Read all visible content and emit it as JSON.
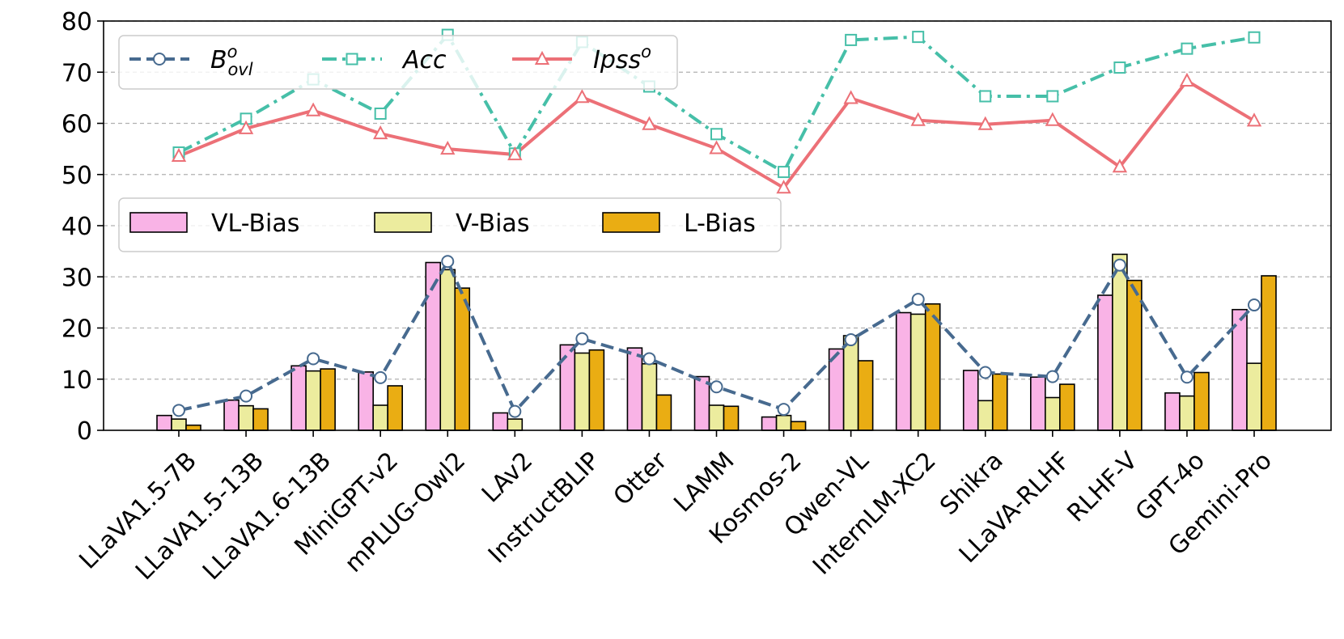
{
  "chart_data": {
    "type": "bar",
    "categories": [
      "LLaVA1.5-7B",
      "LLaVA1.5-13B",
      "LLaVA1.6-13B",
      "MiniGPT-v2",
      "mPLUG-Owl2",
      "LAv2",
      "InstructBLIP",
      "Otter",
      "LAMM",
      "Kosmos-2",
      "Qwen-VL",
      "InternLM-XC2",
      "Shikra",
      "LLaVA-RLHF",
      "RLHF-V",
      "GPT-4o",
      "Gemini-Pro"
    ],
    "ylim": [
      0,
      80
    ],
    "yticks": [
      0,
      10,
      20,
      30,
      40,
      50,
      60,
      70,
      80
    ],
    "grid": "horizontal dashed",
    "bar_series": [
      {
        "name": "VL-Bias",
        "color": "#f9b3e6",
        "values": [
          2.9,
          5.9,
          12.6,
          11.4,
          32.8,
          3.4,
          16.7,
          16.1,
          10.5,
          2.6,
          15.9,
          23.0,
          11.7,
          10.4,
          26.4,
          7.3,
          23.6
        ]
      },
      {
        "name": "V-Bias",
        "color": "#ecec9e",
        "values": [
          2.2,
          4.8,
          11.6,
          4.9,
          31.4,
          2.2,
          15.1,
          13.0,
          4.9,
          2.9,
          18.5,
          22.7,
          5.8,
          6.4,
          34.4,
          6.7,
          13.1
        ]
      },
      {
        "name": "L-Bias",
        "color": "#eaad13",
        "values": [
          1.0,
          4.2,
          12.0,
          8.7,
          27.8,
          0.0,
          15.7,
          6.9,
          4.7,
          1.7,
          13.6,
          24.7,
          11.0,
          9.0,
          29.3,
          11.3,
          30.2
        ]
      }
    ],
    "line_series": [
      {
        "name_base": "B",
        "name_sup": "o",
        "name_sub": "ovl",
        "color": "#476a8f",
        "marker": "circle",
        "dash": "dashed",
        "values": [
          3.9,
          6.7,
          14.0,
          10.3,
          33.0,
          3.7,
          17.9,
          14.0,
          8.5,
          4.1,
          17.7,
          25.6,
          11.3,
          10.5,
          32.3,
          10.4,
          24.5
        ]
      },
      {
        "name_base": "Acc",
        "name_sup": "",
        "name_sub": "",
        "color": "#46bfa8",
        "marker": "square",
        "dash": "dashdot",
        "values": [
          54.3,
          60.9,
          68.6,
          61.9,
          77.3,
          54.1,
          75.9,
          67.2,
          57.9,
          50.5,
          76.3,
          76.9,
          65.3,
          65.3,
          70.9,
          74.6,
          76.8
        ]
      },
      {
        "name_base": "Ipss",
        "name_sup": "o",
        "name_sub": "",
        "color": "#ec7077",
        "marker": "triangle",
        "dash": "solid",
        "values": [
          53.6,
          59.0,
          62.5,
          58.0,
          55.0,
          53.9,
          65.1,
          59.8,
          55.1,
          47.4,
          64.9,
          60.6,
          59.8,
          60.6,
          51.5,
          68.3,
          60.5
        ]
      }
    ]
  }
}
